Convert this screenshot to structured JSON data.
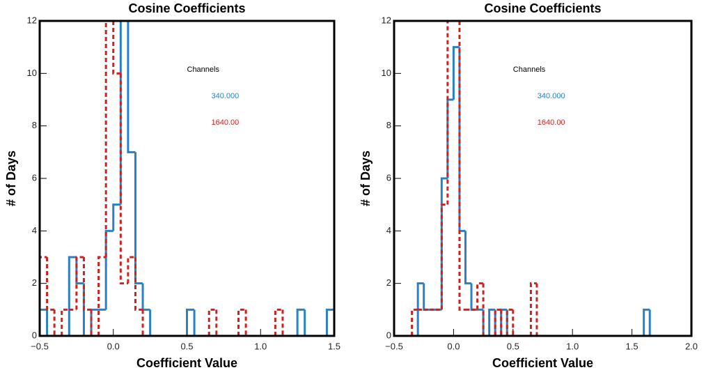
{
  "chart_data": [
    {
      "type": "histogram",
      "title": "Cosine Coefficients",
      "x_label": "Coefficient Value",
      "y_label": "# of Days",
      "legend_title": "Channels",
      "bins": [
        -0.5,
        -0.45,
        -0.4,
        -0.35,
        -0.3,
        -0.25,
        -0.2,
        -0.15,
        -0.1,
        -0.05,
        0,
        0.05,
        0.1,
        0.15,
        0.2,
        0.25,
        0.3,
        0.35,
        0.4,
        0.45,
        0.5,
        0.55,
        0.6,
        0.65,
        0.7,
        0.75,
        0.8,
        0.85,
        0.9,
        0.95,
        1,
        1.05,
        1.1,
        1.15,
        1.2,
        1.25,
        1.3,
        1.35,
        1.4,
        1.45,
        1.5
      ],
      "series": [
        {
          "name": "340.000",
          "color": "#2a80c4",
          "linestyle": "solid",
          "values": [
            1,
            0,
            0,
            0,
            3,
            2,
            0,
            1,
            1,
            4,
            5,
            12,
            7,
            2,
            1,
            0,
            0,
            0,
            0,
            0,
            1,
            0,
            0,
            0,
            0,
            0,
            0,
            0,
            0,
            0,
            0,
            0,
            0,
            0,
            0,
            1,
            0,
            0,
            0,
            1
          ]
        },
        {
          "name": "1640.00",
          "color": "#cc2222",
          "linestyle": "dashed",
          "values": [
            3,
            1,
            0,
            1,
            1,
            3,
            1,
            0,
            3,
            12,
            10,
            2,
            3,
            1,
            0,
            0,
            0,
            0,
            0,
            0,
            0,
            0,
            0,
            1,
            0,
            0,
            0,
            1,
            0,
            0,
            0,
            0,
            1,
            0,
            0,
            0,
            0,
            0,
            0,
            0
          ]
        }
      ],
      "xlim": [
        -0.5,
        1.5
      ],
      "xticks": [
        {
          "value": -0.5,
          "label": "−0.5"
        },
        {
          "value": 0,
          "label": "0.0"
        },
        0.5,
        {
          "value": 1,
          "label": "1.0"
        },
        1.5
      ],
      "ylim": [
        0,
        12
      ],
      "yticks": [
        0,
        2,
        4,
        6,
        8,
        10,
        12
      ]
    },
    {
      "type": "histogram",
      "title": "Cosine Coefficients",
      "x_label": "Coefficient Value",
      "y_label": "# of Days",
      "legend_title": "Channels",
      "bins": [
        -0.5,
        -0.45,
        -0.4,
        -0.35,
        -0.3,
        -0.25,
        -0.2,
        -0.15,
        -0.1,
        -0.05,
        0,
        0.05,
        0.1,
        0.15,
        0.2,
        0.25,
        0.3,
        0.35,
        0.4,
        0.45,
        0.5,
        0.55,
        0.6,
        0.65,
        0.7,
        0.75,
        0.8,
        0.85,
        0.9,
        0.95,
        1,
        1.05,
        1.1,
        1.15,
        1.2,
        1.25,
        1.3,
        1.35,
        1.4,
        1.45,
        1.5,
        1.55,
        1.6,
        1.65,
        1.7,
        1.75,
        1.8,
        1.85,
        1.9,
        1.95,
        2
      ],
      "series": [
        {
          "name": "340.000",
          "color": "#2a80c4",
          "linestyle": "solid",
          "values": [
            0,
            0,
            0,
            0,
            2,
            1,
            1,
            1,
            6,
            9,
            11,
            4,
            2,
            1,
            1,
            0,
            1,
            0,
            1,
            0,
            0,
            0,
            0,
            0,
            0,
            0,
            0,
            0,
            0,
            0,
            0,
            0,
            0,
            0,
            0,
            0,
            0,
            0,
            0,
            0,
            0,
            0,
            1,
            0,
            0,
            0,
            0,
            0,
            0,
            0
          ]
        },
        {
          "name": "1640.00",
          "color": "#cc2222",
          "linestyle": "dashed",
          "values": [
            0,
            0,
            0,
            1,
            1,
            1,
            1,
            1,
            5,
            12,
            12,
            1,
            1,
            1,
            2,
            0,
            0,
            1,
            0,
            1,
            0,
            0,
            0,
            2,
            0,
            0,
            0,
            0,
            0,
            0,
            0,
            0,
            0,
            0,
            0,
            0,
            0,
            0,
            0,
            0,
            0,
            0,
            0,
            0,
            0,
            0,
            0,
            0,
            0,
            0
          ]
        }
      ],
      "xlim": [
        -0.5,
        2.0
      ],
      "xticks": [
        {
          "value": -0.5,
          "label": "−0.5"
        },
        {
          "value": 0,
          "label": "0.0"
        },
        0.5,
        {
          "value": 1,
          "label": "1.0"
        },
        1.5,
        {
          "value": 2,
          "label": "2.0"
        }
      ],
      "ylim": [
        0,
        12
      ],
      "yticks": [
        0,
        2,
        4,
        6,
        8,
        10,
        12
      ]
    }
  ]
}
